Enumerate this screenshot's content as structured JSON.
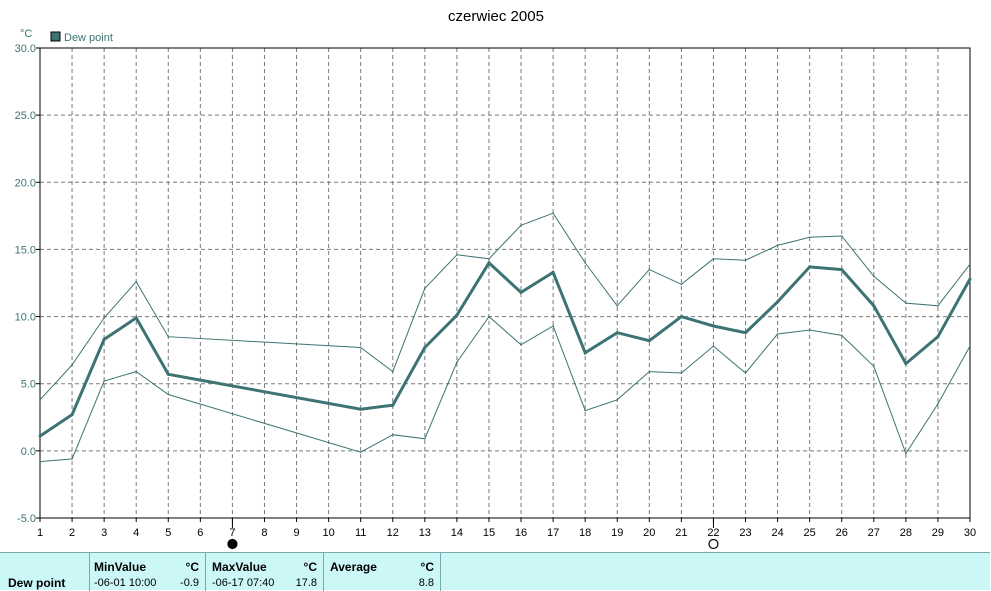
{
  "chart_data": {
    "type": "line",
    "title": "czerwiec 2005",
    "ylabel": "°C",
    "ylim": [
      -5,
      30
    ],
    "yticks": [
      "-5.0",
      "0.0",
      "5.0",
      "10.0",
      "15.0",
      "20.0",
      "25.0",
      "30.0"
    ],
    "x": [
      1,
      2,
      3,
      4,
      5,
      6,
      7,
      8,
      9,
      10,
      11,
      12,
      13,
      14,
      15,
      16,
      17,
      18,
      19,
      20,
      21,
      22,
      23,
      24,
      25,
      26,
      27,
      28,
      29,
      30
    ],
    "legend": [
      "Dew point"
    ],
    "grid": true,
    "series": [
      {
        "name": "Dew point",
        "role": "average",
        "color": "#3e7373",
        "x": [
          1,
          2,
          3,
          4,
          5,
          11,
          12,
          13,
          14,
          15,
          16,
          17,
          18,
          19,
          20,
          21,
          22,
          23,
          24,
          25,
          26,
          27,
          28,
          29,
          30
        ],
        "values": [
          1.1,
          2.7,
          8.3,
          9.9,
          5.7,
          3.1,
          3.4,
          7.7,
          10.1,
          14.0,
          11.8,
          13.3,
          7.3,
          8.8,
          8.2,
          10.0,
          9.3,
          8.8,
          11.1,
          13.7,
          13.5,
          10.8,
          6.5,
          8.5,
          12.8
        ]
      },
      {
        "role": "max",
        "color": "#3e7373",
        "x": [
          1,
          2,
          3,
          4,
          5,
          11,
          12,
          13,
          14,
          15,
          16,
          17,
          18,
          19,
          20,
          21,
          22,
          23,
          24,
          25,
          26,
          27,
          28,
          29,
          30
        ],
        "values": [
          3.8,
          6.4,
          9.9,
          12.6,
          8.5,
          7.7,
          5.9,
          12.1,
          14.6,
          14.3,
          16.8,
          17.7,
          14.0,
          10.8,
          13.5,
          12.4,
          14.3,
          14.2,
          15.3,
          15.9,
          16.0,
          13.0,
          11.0,
          10.8,
          13.9
        ]
      },
      {
        "role": "min",
        "color": "#3e7373",
        "x": [
          1,
          2,
          3,
          4,
          5,
          11,
          12,
          13,
          14,
          15,
          16,
          17,
          18,
          19,
          20,
          21,
          22,
          23,
          24,
          25,
          26,
          27,
          28,
          29,
          30
        ],
        "values": [
          -0.8,
          -0.6,
          5.2,
          5.9,
          4.2,
          -0.1,
          1.2,
          0.9,
          6.6,
          10.0,
          7.9,
          9.3,
          3.0,
          3.8,
          5.9,
          5.8,
          7.8,
          5.8,
          8.7,
          9.0,
          8.6,
          6.3,
          -0.2,
          3.5,
          7.8
        ]
      }
    ],
    "markers": [
      {
        "x": 7,
        "type": "filled-circle"
      },
      {
        "x": 22,
        "type": "open-circle"
      }
    ]
  },
  "stats": {
    "row_label": "Dew point",
    "unit": "°C",
    "min": {
      "label": "MinValue",
      "time": "-06-01 10:00",
      "value": "-0.9"
    },
    "max": {
      "label": "MaxValue",
      "time": "-06-17 07:40",
      "value": "17.8"
    },
    "avg": {
      "label": "Average",
      "value": "8.8"
    }
  }
}
